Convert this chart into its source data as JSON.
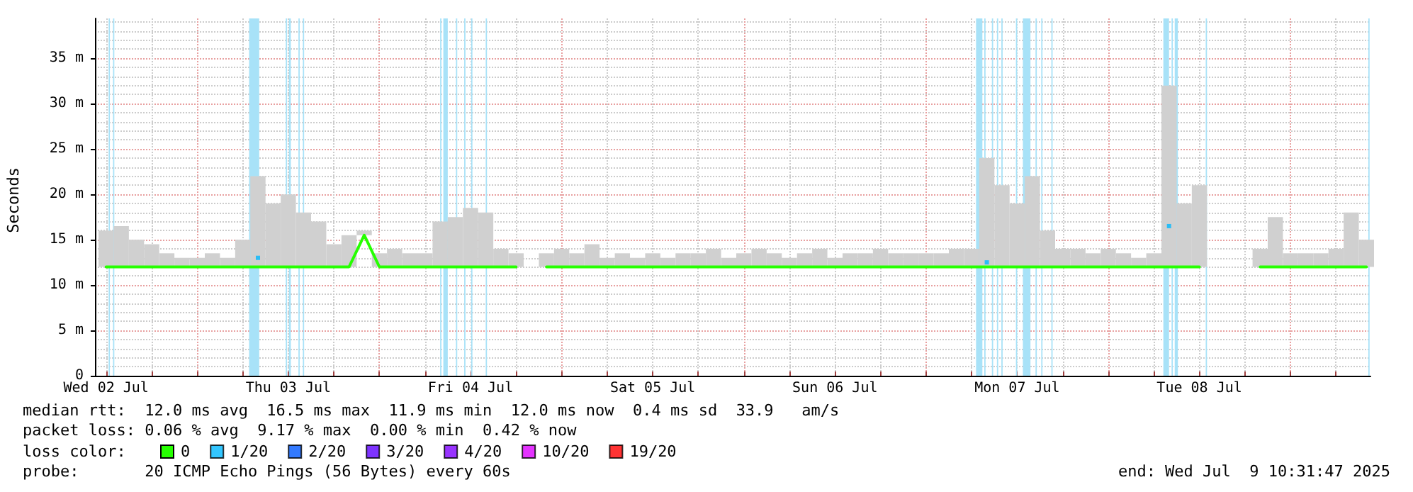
{
  "chart_data": {
    "type": "line",
    "ylabel": "Seconds",
    "legend_title": "loss color:",
    "legend": "bottom",
    "grid": true,
    "marker": "none",
    "line_style": "solid",
    "x": [
      "2025-07-02T12:00",
      "2025-07-02T14:00",
      "2025-07-02T16:00",
      "2025-07-02T18:00",
      "2025-07-02T20:00",
      "2025-07-02T22:00",
      "2025-07-03T00:00",
      "2025-07-03T02:00",
      "2025-07-03T04:00",
      "2025-07-03T06:00",
      "2025-07-03T08:00",
      "2025-07-03T10:00",
      "2025-07-03T12:00",
      "2025-07-03T14:00",
      "2025-07-03T16:00",
      "2025-07-03T18:00",
      "2025-07-03T20:00",
      "2025-07-03T22:00",
      "2025-07-04T00:00",
      "2025-07-04T02:00",
      "2025-07-04T04:00",
      "2025-07-04T06:00",
      "2025-07-04T08:00",
      "2025-07-04T10:00",
      "2025-07-04T12:00",
      "2025-07-04T14:00",
      "2025-07-04T16:00",
      "2025-07-04T18:00",
      "2025-07-04T20:00",
      "2025-07-04T22:00",
      "2025-07-05T00:00",
      "2025-07-05T02:00",
      "2025-07-05T04:00",
      "2025-07-05T06:00",
      "2025-07-05T08:00",
      "2025-07-05T10:00",
      "2025-07-05T12:00",
      "2025-07-05T14:00",
      "2025-07-05T16:00",
      "2025-07-05T18:00",
      "2025-07-05T20:00",
      "2025-07-05T22:00",
      "2025-07-06T00:00",
      "2025-07-06T02:00",
      "2025-07-06T04:00",
      "2025-07-06T06:00",
      "2025-07-06T08:00",
      "2025-07-06T10:00",
      "2025-07-06T12:00",
      "2025-07-06T14:00",
      "2025-07-06T16:00",
      "2025-07-06T18:00",
      "2025-07-06T20:00",
      "2025-07-06T22:00",
      "2025-07-07T00:00",
      "2025-07-07T02:00",
      "2025-07-07T04:00",
      "2025-07-07T06:00",
      "2025-07-07T08:00",
      "2025-07-07T10:00",
      "2025-07-07T12:00",
      "2025-07-07T14:00",
      "2025-07-07T16:00",
      "2025-07-07T18:00",
      "2025-07-07T20:00",
      "2025-07-07T22:00",
      "2025-07-08T00:00",
      "2025-07-08T02:00",
      "2025-07-08T04:00",
      "2025-07-08T06:00",
      "2025-07-08T08:00",
      "2025-07-08T10:00",
      "2025-07-08T12:00",
      "2025-07-08T14:00",
      "2025-07-08T16:00",
      "2025-07-08T18:00",
      "2025-07-08T20:00",
      "2025-07-08T22:00",
      "2025-07-09T00:00",
      "2025-07-09T02:00",
      "2025-07-09T04:00",
      "2025-07-09T06:00",
      "2025-07-09T08:00",
      "2025-07-09T10:00"
    ],
    "series": [
      {
        "type": "bar",
        "color": "#d0d0d0",
        "values": [
          4,
          4.5,
          3,
          2.5,
          1.5,
          1,
          1,
          1.5,
          1,
          3,
          10,
          7,
          8,
          6,
          5,
          2.5,
          3.5,
          0.5,
          1.5,
          2,
          1.5,
          1.5,
          5,
          5.5,
          6.5,
          6,
          2,
          1.5,
          null,
          1.5,
          2,
          1.5,
          2.5,
          1,
          1.5,
          1,
          1.5,
          1,
          1.5,
          1.5,
          2,
          1,
          1.5,
          2,
          1.5,
          1,
          1.5,
          2,
          1,
          1.5,
          1.5,
          2,
          1.5,
          1.5,
          1.5,
          1.5,
          2,
          2,
          12,
          9,
          7,
          10,
          4,
          2,
          2,
          1.5,
          2,
          1.5,
          1,
          1.5,
          20,
          7,
          9,
          null,
          null,
          null,
          2,
          5.5,
          1.5,
          1.5,
          1.5,
          2,
          6,
          3
        ],
        "base": [
          12,
          12,
          12,
          12,
          12,
          12,
          12,
          12,
          12,
          12,
          12,
          12,
          12,
          12,
          12,
          12,
          12,
          15.5,
          12,
          12,
          12,
          12,
          12,
          12,
          12,
          12,
          12,
          12,
          null,
          12,
          12,
          12,
          12,
          12,
          12,
          12,
          12,
          12,
          12,
          12,
          12,
          12,
          12,
          12,
          12,
          12,
          12,
          12,
          12,
          12,
          12,
          12,
          12,
          12,
          12,
          12,
          12,
          12,
          12,
          12,
          12,
          12,
          12,
          12,
          12,
          12,
          12,
          12,
          12,
          12,
          12,
          12,
          12,
          null,
          null,
          null,
          12,
          12,
          12,
          12,
          12,
          12,
          12,
          12
        ]
      },
      {
        "name": "0",
        "color": "#26ff00",
        "values": [
          12,
          12,
          12,
          12,
          12,
          12,
          12,
          12,
          12,
          12,
          12,
          12,
          12,
          12,
          12,
          12,
          12,
          15.5,
          12,
          12,
          12,
          12,
          12,
          12,
          12,
          12,
          12,
          12,
          null,
          12,
          12,
          12,
          12,
          12,
          12,
          12,
          12,
          12,
          12,
          12,
          12,
          12,
          12,
          12,
          12,
          12,
          12,
          12,
          12,
          12,
          12,
          12,
          12,
          12,
          12,
          12,
          12,
          12,
          12,
          12,
          12,
          12,
          12,
          12,
          12,
          12,
          12,
          12,
          12,
          12,
          12,
          12,
          12,
          null,
          null,
          null,
          12,
          12,
          12,
          12,
          12,
          12,
          12,
          12
        ]
      },
      {
        "name": "1/20",
        "type": "scatter",
        "marker": "square",
        "color": "#00b8ff",
        "values": [
          null,
          null,
          null,
          null,
          null,
          null,
          null,
          null,
          null,
          null,
          13,
          null,
          null,
          null,
          null,
          null,
          null,
          null,
          null,
          null,
          null,
          null,
          null,
          null,
          null,
          null,
          null,
          null,
          null,
          null,
          null,
          null,
          null,
          null,
          null,
          null,
          null,
          null,
          null,
          null,
          null,
          null,
          null,
          null,
          null,
          null,
          null,
          null,
          null,
          null,
          null,
          null,
          null,
          null,
          null,
          null,
          null,
          null,
          12.5,
          null,
          null,
          null,
          null,
          null,
          null,
          null,
          null,
          null,
          null,
          null,
          16.5,
          null,
          null,
          null,
          null,
          null,
          null,
          null,
          null,
          null,
          null,
          null,
          null,
          null
        ]
      },
      {
        "name": "2/20",
        "type": "scatter",
        "marker": "square",
        "color": "#0059ff",
        "values": [
          null,
          null,
          null,
          null,
          null,
          null,
          null,
          null,
          null,
          null,
          null,
          null,
          null,
          null,
          null,
          null,
          null,
          null,
          null,
          null,
          null,
          null,
          null,
          null,
          null,
          null,
          null,
          null,
          null,
          null,
          null,
          null,
          null,
          null,
          null,
          null,
          null,
          null,
          null,
          null,
          null,
          null,
          null,
          null,
          null,
          null,
          null,
          null,
          null,
          null,
          null,
          null,
          null,
          null,
          null,
          null,
          null,
          null,
          null,
          null,
          null,
          null,
          null,
          null,
          null,
          null,
          null,
          null,
          null,
          null,
          null,
          null,
          null,
          null,
          null,
          null,
          null,
          null,
          null,
          null,
          null,
          null,
          null,
          null
        ]
      },
      {
        "name": "3/20",
        "type": "scatter",
        "marker": "square",
        "color": "#5e00ff",
        "values": [
          null,
          null,
          null,
          null,
          null,
          null,
          null,
          null,
          null,
          null,
          null,
          null,
          null,
          null,
          null,
          null,
          null,
          null,
          null,
          null,
          null,
          null,
          null,
          null,
          null,
          null,
          null,
          null,
          null,
          null,
          null,
          null,
          null,
          null,
          null,
          null,
          null,
          null,
          null,
          null,
          null,
          null,
          null,
          null,
          null,
          null,
          null,
          null,
          null,
          null,
          null,
          null,
          null,
          null,
          null,
          null,
          null,
          null,
          null,
          null,
          null,
          null,
          null,
          null,
          null,
          null,
          null,
          null,
          null,
          null,
          null,
          null,
          null,
          null,
          null,
          null,
          null,
          null,
          null,
          null,
          null,
          null,
          null,
          null
        ]
      },
      {
        "name": "4/20",
        "type": "scatter",
        "marker": "square",
        "color": "#7e00ff",
        "values": [
          null,
          null,
          null,
          null,
          null,
          null,
          null,
          null,
          null,
          null,
          null,
          null,
          null,
          null,
          null,
          null,
          null,
          null,
          null,
          null,
          null,
          null,
          null,
          null,
          null,
          null,
          null,
          null,
          null,
          null,
          null,
          null,
          null,
          null,
          null,
          null,
          null,
          null,
          null,
          null,
          null,
          null,
          null,
          null,
          null,
          null,
          null,
          null,
          null,
          null,
          null,
          null,
          null,
          null,
          null,
          null,
          null,
          null,
          null,
          null,
          null,
          null,
          null,
          null,
          null,
          null,
          null,
          null,
          null,
          null,
          null,
          null,
          null,
          null,
          null,
          null,
          null,
          null,
          null,
          null,
          null,
          null,
          null,
          null
        ]
      },
      {
        "name": "10/20",
        "type": "scatter",
        "marker": "square",
        "color": "#dd00ff",
        "values": [
          null,
          null,
          null,
          null,
          null,
          null,
          null,
          null,
          null,
          null,
          null,
          null,
          null,
          null,
          null,
          null,
          null,
          null,
          null,
          null,
          null,
          null,
          null,
          null,
          null,
          null,
          null,
          null,
          null,
          null,
          null,
          null,
          null,
          null,
          null,
          null,
          null,
          null,
          null,
          null,
          null,
          null,
          null,
          null,
          null,
          null,
          null,
          null,
          null,
          null,
          null,
          null,
          null,
          null,
          null,
          null,
          null,
          null,
          null,
          null,
          null,
          null,
          null,
          null,
          null,
          null,
          null,
          null,
          null,
          null,
          null,
          null,
          null,
          null,
          null,
          null,
          null,
          null,
          null,
          null,
          null,
          null,
          null,
          null
        ]
      },
      {
        "name": "19/20",
        "type": "scatter",
        "marker": "square",
        "color": "#ff0000",
        "values": [
          null,
          null,
          null,
          null,
          null,
          null,
          null,
          null,
          null,
          null,
          null,
          null,
          null,
          null,
          null,
          null,
          null,
          null,
          null,
          null,
          null,
          null,
          null,
          null,
          null,
          null,
          null,
          null,
          null,
          null,
          null,
          null,
          null,
          null,
          null,
          null,
          null,
          null,
          null,
          null,
          null,
          null,
          null,
          null,
          null,
          null,
          null,
          null,
          null,
          null,
          null,
          null,
          null,
          null,
          null,
          null,
          null,
          null,
          null,
          null,
          null,
          null,
          null,
          null,
          null,
          null,
          null,
          null,
          null,
          null,
          null,
          null,
          null,
          null,
          null,
          null,
          null,
          null,
          null,
          null,
          null,
          null,
          null,
          null
        ]
      }
    ],
    "xlim": [
      "2025-07-02T10:32",
      "2025-07-09T10:32"
    ],
    "xticks": [
      {
        "value": "2025-07-02T12:00",
        "label": "Wed 02 Jul"
      },
      {
        "value": "2025-07-02T18:00",
        "label": null
      },
      {
        "value": "2025-07-03T00:00",
        "label": null
      },
      {
        "value": "2025-07-03T06:00",
        "label": null
      },
      {
        "value": "2025-07-03T12:00",
        "label": "Thu 03 Jul"
      },
      {
        "value": "2025-07-03T18:00",
        "label": null
      },
      {
        "value": "2025-07-04T00:00",
        "label": null
      },
      {
        "value": "2025-07-04T06:00",
        "label": null
      },
      {
        "value": "2025-07-04T12:00",
        "label": "Fri 04 Jul"
      },
      {
        "value": "2025-07-04T18:00",
        "label": null
      },
      {
        "value": "2025-07-05T00:00",
        "label": null
      },
      {
        "value": "2025-07-05T06:00",
        "label": null
      },
      {
        "value": "2025-07-05T12:00",
        "label": "Sat 05 Jul"
      },
      {
        "value": "2025-07-05T18:00",
        "label": null
      },
      {
        "value": "2025-07-06T00:00",
        "label": null
      },
      {
        "value": "2025-07-06T06:00",
        "label": null
      },
      {
        "value": "2025-07-06T12:00",
        "label": "Sun 06 Jul"
      },
      {
        "value": "2025-07-06T18:00",
        "label": null
      },
      {
        "value": "2025-07-07T00:00",
        "label": null
      },
      {
        "value": "2025-07-07T06:00",
        "label": null
      },
      {
        "value": "2025-07-07T12:00",
        "label": "Mon 07 Jul"
      },
      {
        "value": "2025-07-07T18:00",
        "label": null
      },
      {
        "value": "2025-07-08T00:00",
        "label": null
      },
      {
        "value": "2025-07-08T06:00",
        "label": null
      },
      {
        "value": "2025-07-08T12:00",
        "label": "Tue 08 Jul"
      },
      {
        "value": "2025-07-08T18:00",
        "label": null
      },
      {
        "value": "2025-07-09T00:00",
        "label": null
      },
      {
        "value": "2025-07-09T06:00",
        "label": null
      }
    ],
    "ylim": [
      0,
      39.4
    ],
    "yticks": [
      0,
      {
        "value": 5,
        "label": "5 m"
      },
      {
        "value": 10,
        "label": "10 m"
      },
      {
        "value": 15,
        "label": "15 m"
      },
      {
        "value": 20,
        "label": "20 m"
      },
      {
        "value": 25,
        "label": "25 m"
      },
      {
        "value": 30,
        "label": "30 m"
      },
      {
        "value": 35,
        "label": "35 m"
      }
    ],
    "bands": [
      {
        "axis": "x",
        "from": "2025-07-02T12:20",
        "to": "2025-07-02T12:30",
        "color": "#a8e2f8"
      },
      {
        "axis": "x",
        "from": "2025-07-02T12:55",
        "to": "2025-07-02T13:05",
        "color": "#a8e2f8"
      },
      {
        "axis": "x",
        "from": "2025-07-03T06:50",
        "to": "2025-07-03T08:10",
        "color": "#a8e2f8"
      },
      {
        "axis": "x",
        "from": "2025-07-03T11:40",
        "to": "2025-07-03T11:50",
        "color": "#a8e2f8"
      },
      {
        "axis": "x",
        "from": "2025-07-03T12:05",
        "to": "2025-07-03T12:20",
        "color": "#a8e2f8"
      },
      {
        "axis": "x",
        "from": "2025-07-03T13:20",
        "to": "2025-07-03T13:30",
        "color": "#a8e2f8"
      },
      {
        "axis": "x",
        "from": "2025-07-03T13:55",
        "to": "2025-07-03T14:05",
        "color": "#a8e2f8"
      },
      {
        "axis": "x",
        "from": "2025-07-04T08:00",
        "to": "2025-07-04T08:10",
        "color": "#a8e2f8"
      },
      {
        "axis": "x",
        "from": "2025-07-04T08:25",
        "to": "2025-07-04T09:00",
        "color": "#a8e2f8"
      },
      {
        "axis": "x",
        "from": "2025-07-04T10:05",
        "to": "2025-07-04T10:15",
        "color": "#a8e2f8"
      },
      {
        "axis": "x",
        "from": "2025-07-04T11:10",
        "to": "2025-07-04T11:20",
        "color": "#a8e2f8"
      },
      {
        "axis": "x",
        "from": "2025-07-04T12:05",
        "to": "2025-07-04T12:15",
        "color": "#a8e2f8"
      },
      {
        "axis": "x",
        "from": "2025-07-04T14:00",
        "to": "2025-07-04T14:10",
        "color": "#a8e2f8"
      },
      {
        "axis": "x",
        "from": "2025-07-07T06:35",
        "to": "2025-07-07T07:25",
        "color": "#a8e2f8"
      },
      {
        "axis": "x",
        "from": "2025-07-07T07:40",
        "to": "2025-07-07T07:50",
        "color": "#a8e2f8"
      },
      {
        "axis": "x",
        "from": "2025-07-07T08:40",
        "to": "2025-07-07T08:50",
        "color": "#a8e2f8"
      },
      {
        "axis": "x",
        "from": "2025-07-07T09:20",
        "to": "2025-07-07T09:30",
        "color": "#a8e2f8"
      },
      {
        "axis": "x",
        "from": "2025-07-07T09:55",
        "to": "2025-07-07T10:05",
        "color": "#a8e2f8"
      },
      {
        "axis": "x",
        "from": "2025-07-07T11:50",
        "to": "2025-07-07T12:00",
        "color": "#a8e2f8"
      },
      {
        "axis": "x",
        "from": "2025-07-07T12:45",
        "to": "2025-07-07T13:45",
        "color": "#a8e2f8"
      },
      {
        "axis": "x",
        "from": "2025-07-07T14:25",
        "to": "2025-07-07T14:35",
        "color": "#a8e2f8"
      },
      {
        "axis": "x",
        "from": "2025-07-07T15:10",
        "to": "2025-07-07T15:20",
        "color": "#a8e2f8"
      },
      {
        "axis": "x",
        "from": "2025-07-07T16:30",
        "to": "2025-07-07T16:40",
        "color": "#a8e2f8"
      },
      {
        "axis": "x",
        "from": "2025-07-08T07:15",
        "to": "2025-07-08T08:00",
        "color": "#a8e2f8"
      },
      {
        "axis": "x",
        "from": "2025-07-08T08:20",
        "to": "2025-07-08T08:30",
        "color": "#a8e2f8"
      },
      {
        "axis": "x",
        "from": "2025-07-08T08:45",
        "to": "2025-07-08T09:10",
        "color": "#a8e2f8"
      },
      {
        "axis": "x",
        "from": "2025-07-08T12:50",
        "to": "2025-07-08T13:00",
        "color": "#a8e2f8"
      },
      {
        "axis": "x",
        "from": "2025-07-09T10:15",
        "to": "2025-07-09T10:25",
        "color": "#a8e2f8"
      }
    ],
    "annotations": [
      "median rtt:  12.0 ms avg  16.5 ms max  11.9 ms min  12.0 ms now  0.4 ms sd  33.9   am/s",
      "packet loss: 0.06 % avg  9.17 % max  0.00 % min  0.42 % now",
      "probe:       20 ICMP Echo Pings (56 Bytes) every 60s",
      "end: Wed Jul  9 10:31:47 2025"
    ]
  }
}
